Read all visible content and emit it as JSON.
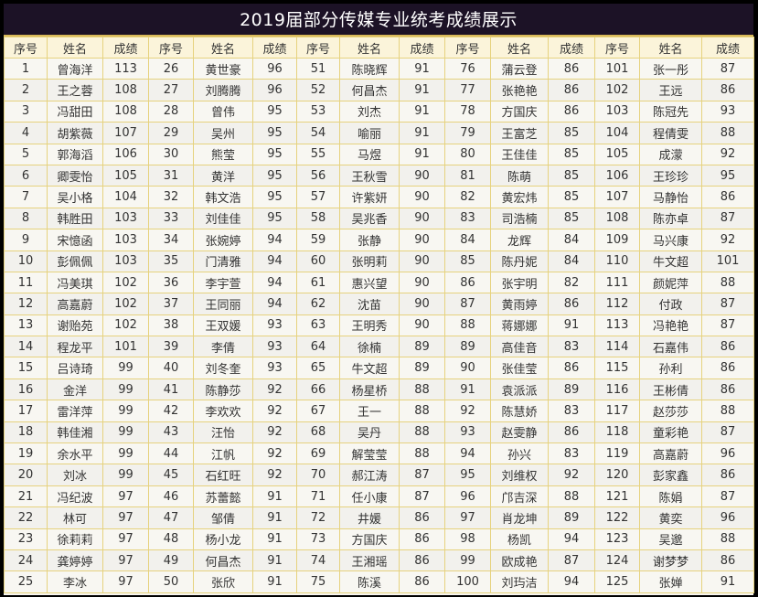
{
  "title": "2019届部分传媒专业统考成绩展示",
  "headers": [
    "序号",
    "姓名",
    "成绩"
  ],
  "colors": {
    "title_bg": "#1c1226",
    "grid": "#e6d27e",
    "header_bg": "#fbf4da"
  },
  "students": [
    [
      "1",
      "曾海洋",
      "113"
    ],
    [
      "2",
      "王之蓉",
      "108"
    ],
    [
      "3",
      "冯甜田",
      "108"
    ],
    [
      "4",
      "胡紫薇",
      "107"
    ],
    [
      "5",
      "郭海滔",
      "106"
    ],
    [
      "6",
      "卿雯怡",
      "105"
    ],
    [
      "7",
      "吴小格",
      "104"
    ],
    [
      "8",
      "韩胜田",
      "103"
    ],
    [
      "9",
      "宋憶函",
      "103"
    ],
    [
      "10",
      "彭佩佩",
      "103"
    ],
    [
      "11",
      "冯美琪",
      "102"
    ],
    [
      "12",
      "高嘉蔚",
      "102"
    ],
    [
      "13",
      "谢贻苑",
      "102"
    ],
    [
      "14",
      "程龙平",
      "101"
    ],
    [
      "15",
      "吕诗琦",
      "99"
    ],
    [
      "16",
      "金洋",
      "99"
    ],
    [
      "17",
      "雷洋萍",
      "99"
    ],
    [
      "18",
      "韩佳湘",
      "99"
    ],
    [
      "19",
      "余水平",
      "99"
    ],
    [
      "20",
      "刘冰",
      "99"
    ],
    [
      "21",
      "冯纪波",
      "97"
    ],
    [
      "22",
      "林可",
      "97"
    ],
    [
      "23",
      "徐莉莉",
      "97"
    ],
    [
      "24",
      "龚婷婷",
      "97"
    ],
    [
      "25",
      "李冰",
      "97"
    ],
    [
      "26",
      "黄世豪",
      "96"
    ],
    [
      "27",
      "刘腾腾",
      "96"
    ],
    [
      "28",
      "曾伟",
      "95"
    ],
    [
      "29",
      "吴州",
      "95"
    ],
    [
      "30",
      "熊莹",
      "95"
    ],
    [
      "31",
      "黄洋",
      "95"
    ],
    [
      "32",
      "韩文浩",
      "95"
    ],
    [
      "33",
      "刘佳佳",
      "95"
    ],
    [
      "34",
      "张婉婷",
      "94"
    ],
    [
      "35",
      "门清雅",
      "94"
    ],
    [
      "36",
      "李宇萱",
      "94"
    ],
    [
      "37",
      "王同丽",
      "94"
    ],
    [
      "38",
      "王双媛",
      "93"
    ],
    [
      "39",
      "李倩",
      "93"
    ],
    [
      "40",
      "刘冬奎",
      "93"
    ],
    [
      "41",
      "陈静莎",
      "92"
    ],
    [
      "42",
      "李欢欢",
      "92"
    ],
    [
      "43",
      "汪怡",
      "92"
    ],
    [
      "44",
      "江帆",
      "92"
    ],
    [
      "45",
      "石红旺",
      "92"
    ],
    [
      "46",
      "苏蕾懿",
      "91"
    ],
    [
      "47",
      "邹倩",
      "91"
    ],
    [
      "48",
      "杨小龙",
      "91"
    ],
    [
      "49",
      "何昌杰",
      "91"
    ],
    [
      "50",
      "张欣",
      "91"
    ],
    [
      "51",
      "陈晓辉",
      "91"
    ],
    [
      "52",
      "何昌杰",
      "91"
    ],
    [
      "53",
      "刘杰",
      "91"
    ],
    [
      "54",
      "喻丽",
      "91"
    ],
    [
      "55",
      "马煜",
      "91"
    ],
    [
      "56",
      "王秋雪",
      "90"
    ],
    [
      "57",
      "许紫妍",
      "90"
    ],
    [
      "58",
      "吴兆香",
      "90"
    ],
    [
      "59",
      "张静",
      "90"
    ],
    [
      "60",
      "张明莉",
      "90"
    ],
    [
      "61",
      "惠兴望",
      "90"
    ],
    [
      "62",
      "沈苗",
      "90"
    ],
    [
      "63",
      "王明秀",
      "90"
    ],
    [
      "64",
      "徐楠",
      "89"
    ],
    [
      "65",
      "牛文超",
      "89"
    ],
    [
      "66",
      "杨星桥",
      "88"
    ],
    [
      "67",
      "王一",
      "88"
    ],
    [
      "68",
      "吴丹",
      "88"
    ],
    [
      "69",
      "解莹莹",
      "88"
    ],
    [
      "70",
      "郝江涛",
      "87"
    ],
    [
      "71",
      "任小康",
      "87"
    ],
    [
      "72",
      "井媛",
      "86"
    ],
    [
      "73",
      "方国庆",
      "86"
    ],
    [
      "74",
      "王湘瑶",
      "86"
    ],
    [
      "75",
      "陈溪",
      "86"
    ],
    [
      "76",
      "蒲云登",
      "86"
    ],
    [
      "77",
      "张艳艳",
      "86"
    ],
    [
      "78",
      "方国庆",
      "86"
    ],
    [
      "79",
      "王富芝",
      "85"
    ],
    [
      "80",
      "王佳佳",
      "85"
    ],
    [
      "81",
      "陈萌",
      "85"
    ],
    [
      "82",
      "黄宏炜",
      "85"
    ],
    [
      "83",
      "司浩楠",
      "85"
    ],
    [
      "84",
      "龙辉",
      "84"
    ],
    [
      "85",
      "陈丹妮",
      "84"
    ],
    [
      "86",
      "张宇明",
      "82"
    ],
    [
      "87",
      "黄雨婷",
      "86"
    ],
    [
      "88",
      "蒋娜娜",
      "91"
    ],
    [
      "89",
      "高佳音",
      "83"
    ],
    [
      "90",
      "张佳莹",
      "86"
    ],
    [
      "91",
      "袁派派",
      "89"
    ],
    [
      "92",
      "陈慧娇",
      "83"
    ],
    [
      "93",
      "赵雯静",
      "86"
    ],
    [
      "94",
      "孙兴",
      "83"
    ],
    [
      "95",
      "刘维权",
      "92"
    ],
    [
      "96",
      "邝吉深",
      "88"
    ],
    [
      "97",
      "肖龙坤",
      "89"
    ],
    [
      "98",
      "杨凯",
      "94"
    ],
    [
      "99",
      "欧成艳",
      "87"
    ],
    [
      "100",
      "刘玙洁",
      "94"
    ],
    [
      "101",
      "张一彤",
      "87"
    ],
    [
      "102",
      "王远",
      "86"
    ],
    [
      "103",
      "陈冠先",
      "93"
    ],
    [
      "104",
      "程倩雯",
      "88"
    ],
    [
      "105",
      "成濛",
      "92"
    ],
    [
      "106",
      "王珍珍",
      "95"
    ],
    [
      "107",
      "马静怡",
      "86"
    ],
    [
      "108",
      "陈亦卓",
      "87"
    ],
    [
      "109",
      "马兴康",
      "92"
    ],
    [
      "110",
      "牛文超",
      "101"
    ],
    [
      "111",
      "颜妮萍",
      "88"
    ],
    [
      "112",
      "付政",
      "87"
    ],
    [
      "113",
      "冯艳艳",
      "87"
    ],
    [
      "114",
      "石嘉伟",
      "86"
    ],
    [
      "115",
      "孙利",
      "86"
    ],
    [
      "116",
      "王彬倩",
      "86"
    ],
    [
      "117",
      "赵莎莎",
      "88"
    ],
    [
      "118",
      "童彩艳",
      "87"
    ],
    [
      "119",
      "高嘉蔚",
      "96"
    ],
    [
      "120",
      "彭家鑫",
      "86"
    ],
    [
      "121",
      "陈娟",
      "87"
    ],
    [
      "122",
      "黄奕",
      "96"
    ],
    [
      "123",
      "吴邈",
      "88"
    ],
    [
      "124",
      "谢梦梦",
      "86"
    ],
    [
      "125",
      "张婵",
      "91"
    ]
  ]
}
